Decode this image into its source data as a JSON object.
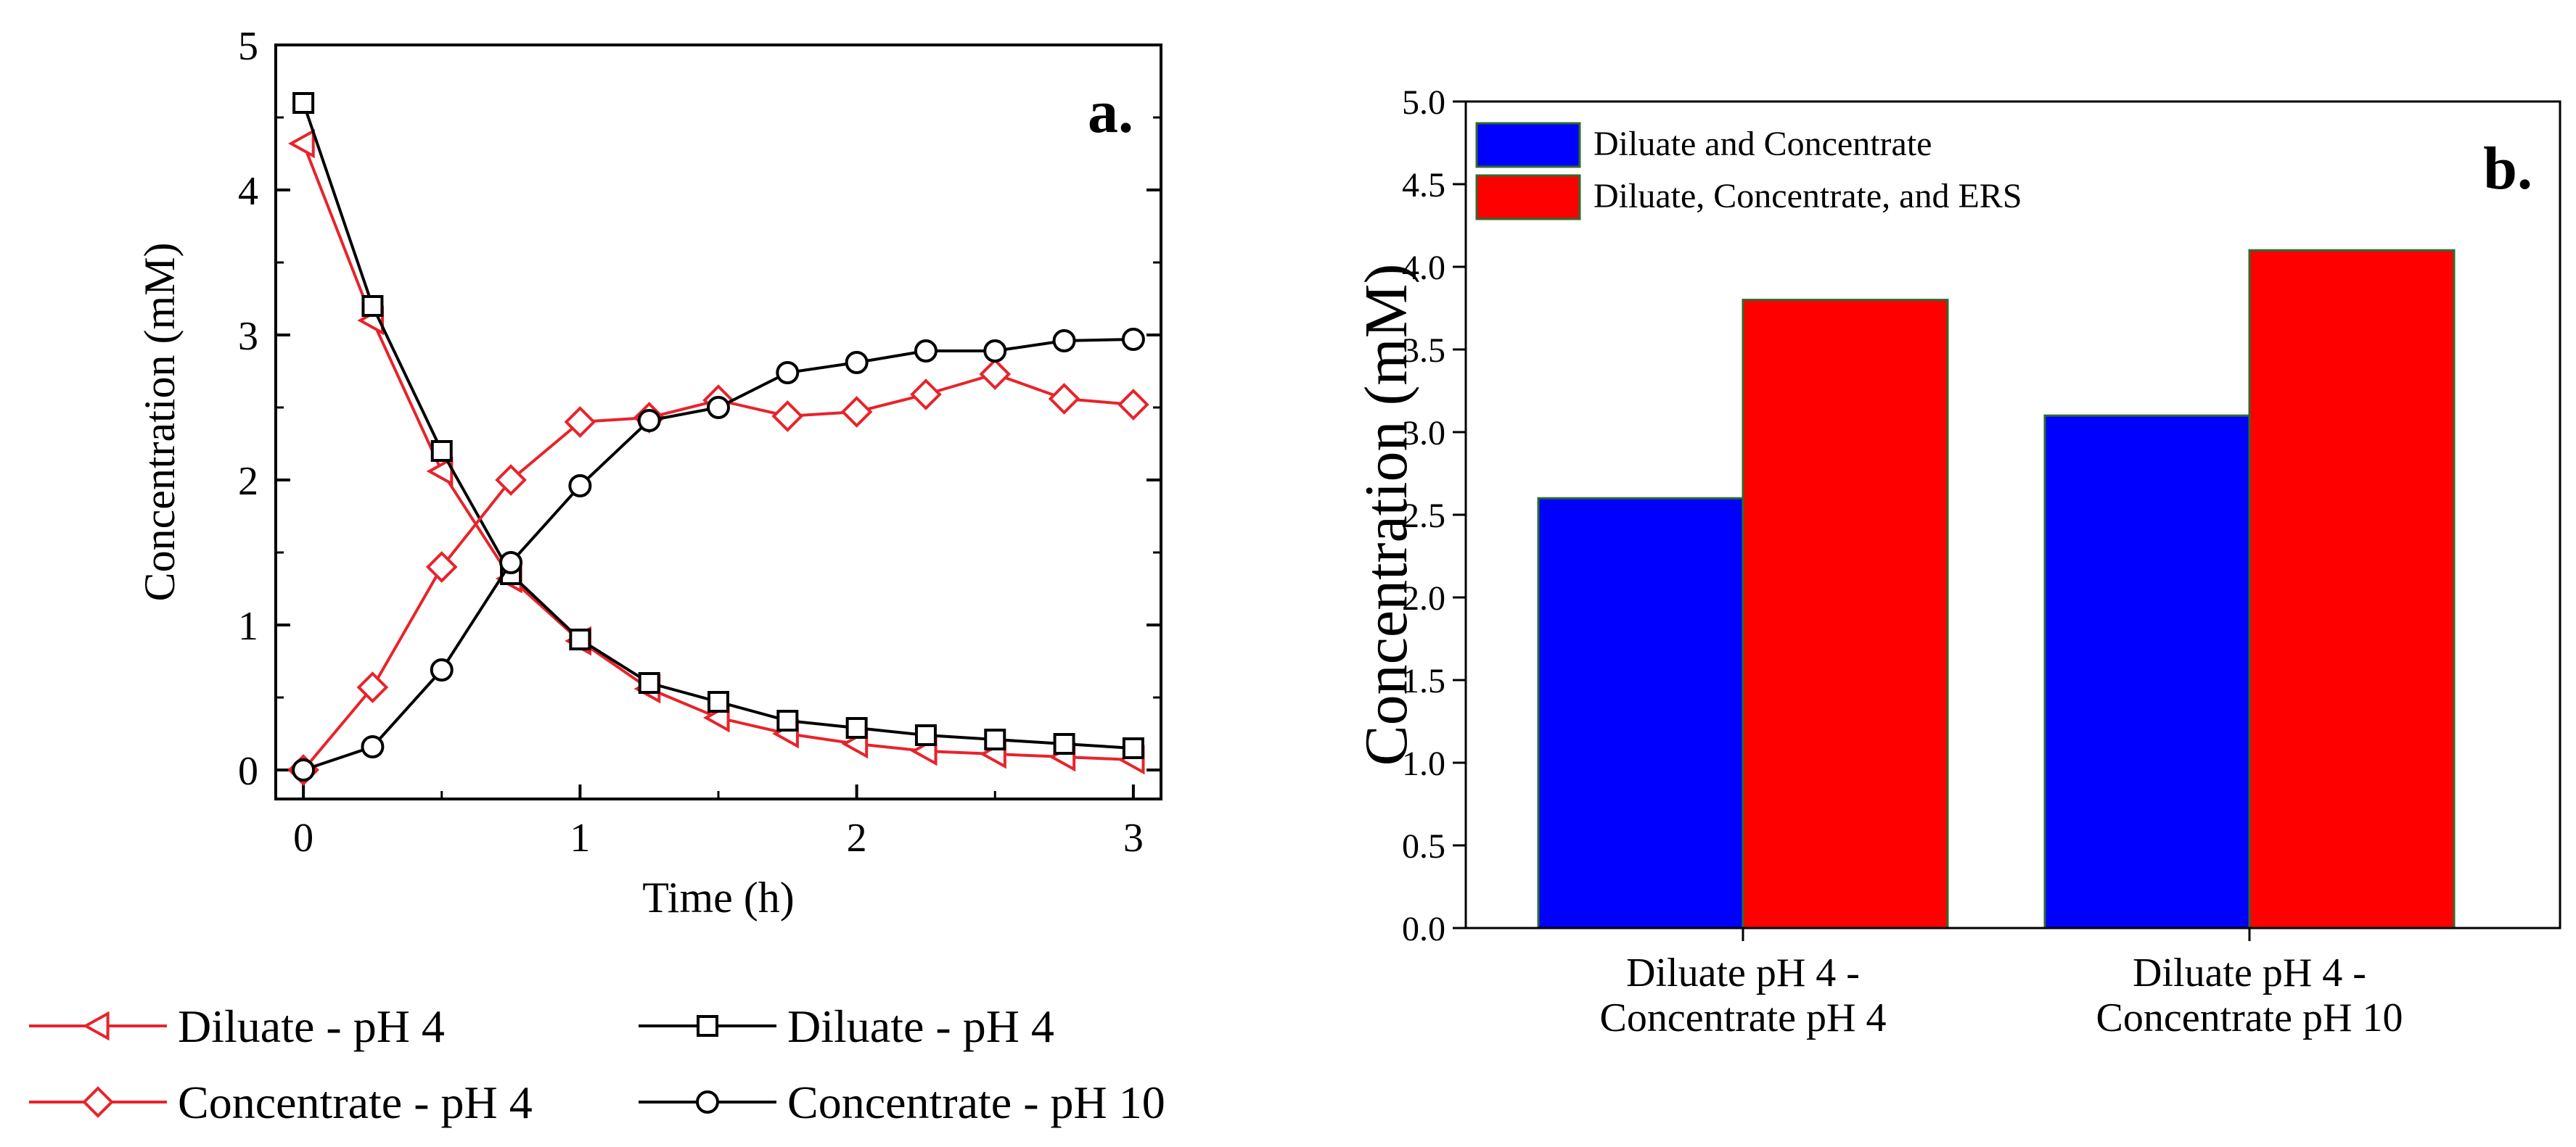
{
  "chart_data": [
    {
      "type": "line",
      "panel_label": "a.",
      "xlabel": "Time (h)",
      "ylabel": "Concentration (mM)",
      "xlim": [
        -0.1,
        3.1
      ],
      "ylim": [
        -0.2,
        5
      ],
      "xticks": [
        0,
        1,
        2,
        3
      ],
      "yticks": [
        0,
        1,
        2,
        3,
        4,
        5
      ],
      "x": [
        0,
        0.25,
        0.5,
        0.75,
        1,
        1.25,
        1.5,
        1.75,
        2,
        2.25,
        2.5,
        2.75,
        3
      ],
      "series": [
        {
          "name": "Diluate - pH 4",
          "color": "#e8232a",
          "marker": "triangle-left",
          "values": [
            4.32,
            3.1,
            2.06,
            1.32,
            0.89,
            0.56,
            0.36,
            0.25,
            0.18,
            0.13,
            0.11,
            0.09,
            0.07
          ]
        },
        {
          "name": "Diluate - pH 4",
          "color": "#000000",
          "marker": "square",
          "values": [
            4.6,
            3.2,
            2.2,
            1.35,
            0.9,
            0.6,
            0.47,
            0.34,
            0.29,
            0.24,
            0.21,
            0.18,
            0.15
          ]
        },
        {
          "name": "Concentrate - pH 4",
          "color": "#e8232a",
          "marker": "diamond",
          "values": [
            0.0,
            0.57,
            1.4,
            2.0,
            2.4,
            2.43,
            2.55,
            2.44,
            2.47,
            2.59,
            2.73,
            2.56,
            2.52
          ]
        },
        {
          "name": "Concentrate - pH 10",
          "color": "#000000",
          "marker": "circle",
          "values": [
            0.0,
            0.16,
            0.69,
            1.43,
            1.96,
            2.41,
            2.5,
            2.74,
            2.81,
            2.89,
            2.89,
            2.96,
            2.97
          ]
        }
      ]
    },
    {
      "type": "bar",
      "panel_label": "b.",
      "ylabel": "Concentration (mM)",
      "xlabel": "",
      "ylim": [
        0,
        5
      ],
      "yticks": [
        "0.0",
        "0.5",
        "1.0",
        "1.5",
        "2.0",
        "2.5",
        "3.0",
        "3.5",
        "4.0",
        "4.5",
        "5.0"
      ],
      "categories": [
        [
          "Diluate pH 4 -",
          "Concentrate pH 4"
        ],
        [
          "Diluate pH 4 -",
          "Concentrate pH 10"
        ]
      ],
      "series": [
        {
          "name": "Diluate and Concentrate",
          "color": "#0000ff",
          "values": [
            2.6,
            3.1
          ]
        },
        {
          "name": "Diluate, Concentrate, and ERS",
          "color": "#ff0000",
          "values": [
            3.8,
            4.1
          ]
        }
      ]
    }
  ]
}
